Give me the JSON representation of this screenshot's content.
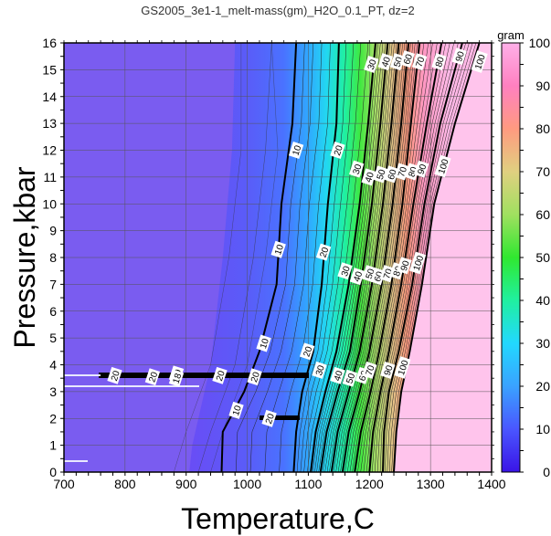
{
  "chart_data": {
    "type": "heatmap",
    "title": "GS2005_3e1-1_melt-mass(gm)_H2O_0.1_PT, dz=2",
    "xlabel": "Temperature,C",
    "ylabel": "Pressure,kbar",
    "xlim": [
      700,
      1400
    ],
    "ylim": [
      0,
      16
    ],
    "xticks": [
      700,
      800,
      900,
      1000,
      1100,
      1200,
      1300,
      1400
    ],
    "yticks": [
      0,
      1,
      2,
      3,
      4,
      5,
      6,
      7,
      8,
      9,
      10,
      11,
      12,
      13,
      14,
      15,
      16
    ],
    "grid": true,
    "colorbar": {
      "label": "gram",
      "range": [
        0,
        100
      ],
      "ticks": [
        0,
        10,
        20,
        30,
        40,
        50,
        60,
        70,
        80,
        90,
        100
      ],
      "colors": [
        "#3a14e6",
        "#4a56ff",
        "#3aa2ff",
        "#22d8ff",
        "#20f0a0",
        "#30e830",
        "#a0e060",
        "#e0d080",
        "#ff9a80",
        "#ff80c0",
        "#ffb0e8"
      ]
    },
    "contour_interval": 2,
    "major_contours": [
      10,
      20,
      30,
      40,
      50,
      60,
      70,
      80,
      90,
      100
    ],
    "contour_label_values": [
      10,
      20,
      30,
      40,
      50,
      60,
      70,
      80,
      90,
      100
    ],
    "isolines": [
      {
        "value": 10,
        "points": [
          [
            1080,
            16
          ],
          [
            1074,
            13
          ],
          [
            1056,
            10
          ],
          [
            1048,
            7
          ],
          [
            1020,
            4.5
          ],
          [
            995,
            3.0
          ],
          [
            960,
            1.5
          ],
          [
            958,
            0
          ]
        ]
      },
      {
        "value": 20,
        "points": [
          [
            1150,
            16
          ],
          [
            1146,
            13
          ],
          [
            1132,
            10
          ],
          [
            1122,
            7
          ],
          [
            1108,
            4.5
          ],
          [
            1090,
            3.0
          ],
          [
            1080,
            1.5
          ],
          [
            1076,
            0
          ]
        ]
      },
      {
        "value": 30,
        "points": [
          [
            1210,
            16
          ],
          [
            1198,
            13
          ],
          [
            1184,
            10
          ],
          [
            1166,
            7
          ],
          [
            1146,
            4.5
          ],
          [
            1128,
            3.0
          ],
          [
            1112,
            1.5
          ],
          [
            1104,
            0
          ]
        ]
      },
      {
        "value": 40,
        "points": [
          [
            1230,
            16
          ],
          [
            1218,
            13
          ],
          [
            1204,
            10
          ],
          [
            1186,
            7
          ],
          [
            1168,
            4.5
          ],
          [
            1148,
            3.0
          ],
          [
            1130,
            1.5
          ],
          [
            1120,
            0
          ]
        ]
      },
      {
        "value": 50,
        "points": [
          [
            1248,
            16
          ],
          [
            1236,
            13
          ],
          [
            1222,
            10
          ],
          [
            1204,
            7
          ],
          [
            1184,
            4.5
          ],
          [
            1166,
            3.0
          ],
          [
            1148,
            1.5
          ],
          [
            1138,
            0
          ]
        ]
      },
      {
        "value": 60,
        "points": [
          [
            1264,
            16
          ],
          [
            1252,
            13
          ],
          [
            1238,
            10
          ],
          [
            1220,
            7
          ],
          [
            1200,
            4.5
          ],
          [
            1184,
            3.0
          ],
          [
            1166,
            1.5
          ],
          [
            1156,
            0
          ]
        ]
      },
      {
        "value": 70,
        "points": [
          [
            1282,
            16
          ],
          [
            1268,
            13
          ],
          [
            1254,
            10
          ],
          [
            1236,
            7
          ],
          [
            1216,
            4.5
          ],
          [
            1202,
            3.0
          ],
          [
            1186,
            1.5
          ],
          [
            1176,
            0
          ]
        ]
      },
      {
        "value": 80,
        "points": [
          [
            1318,
            16
          ],
          [
            1294,
            13
          ],
          [
            1272,
            10
          ],
          [
            1252,
            7
          ],
          [
            1232,
            4.5
          ],
          [
            1218,
            3.0
          ],
          [
            1206,
            1.5
          ],
          [
            1200,
            0
          ]
        ]
      },
      {
        "value": 90,
        "points": [
          [
            1352,
            16
          ],
          [
            1316,
            13
          ],
          [
            1290,
            10
          ],
          [
            1270,
            7
          ],
          [
            1248,
            4.5
          ],
          [
            1232,
            3.0
          ],
          [
            1224,
            1.5
          ],
          [
            1222,
            0
          ]
        ]
      },
      {
        "value": 100,
        "points": [
          [
            1380,
            16
          ],
          [
            1340,
            13
          ],
          [
            1306,
            10
          ],
          [
            1286,
            7
          ],
          [
            1266,
            4.5
          ],
          [
            1252,
            3.0
          ],
          [
            1244,
            1.5
          ],
          [
            1240,
            0
          ]
        ]
      }
    ],
    "labeled_points": [
      {
        "text": "10",
        "x": 1080,
        "y": 12.0
      },
      {
        "text": "10",
        "x": 1051,
        "y": 8.3
      },
      {
        "text": "10",
        "x": 1027,
        "y": 4.8
      },
      {
        "text": "10",
        "x": 982,
        "y": 2.3
      },
      {
        "text": "20",
        "x": 1148,
        "y": 12.0
      },
      {
        "text": "20",
        "x": 1125,
        "y": 8.2
      },
      {
        "text": "20",
        "x": 1098,
        "y": 4.5
      },
      {
        "text": "20",
        "x": 1036,
        "y": 2.0
      },
      {
        "text": "20",
        "x": 783,
        "y": 3.6
      },
      {
        "text": "20",
        "x": 845,
        "y": 3.55
      },
      {
        "text": "20",
        "x": 955,
        "y": 3.6
      },
      {
        "text": "20",
        "x": 1012,
        "y": 3.55
      },
      {
        "text": "19",
        "x": 884,
        "y": 3.65
      },
      {
        "text": "18",
        "x": 884,
        "y": 3.5
      },
      {
        "text": "30",
        "x": 1203,
        "y": 15.2
      },
      {
        "text": "30",
        "x": 1179,
        "y": 11.3
      },
      {
        "text": "30",
        "x": 1160,
        "y": 7.5
      },
      {
        "text": "30",
        "x": 1118,
        "y": 3.8
      },
      {
        "text": "40",
        "x": 1226,
        "y": 15.3
      },
      {
        "text": "40",
        "x": 1199,
        "y": 11.0
      },
      {
        "text": "40",
        "x": 1180,
        "y": 7.3
      },
      {
        "text": "40",
        "x": 1148,
        "y": 3.6
      },
      {
        "text": "50",
        "x": 1246,
        "y": 15.3
      },
      {
        "text": "50",
        "x": 1218,
        "y": 11.1
      },
      {
        "text": "50",
        "x": 1200,
        "y": 7.4
      },
      {
        "text": "50",
        "x": 1168,
        "y": 3.5
      },
      {
        "text": "60",
        "x": 1262,
        "y": 15.4
      },
      {
        "text": "60",
        "x": 1236,
        "y": 11.1
      },
      {
        "text": "60",
        "x": 1214,
        "y": 7.3
      },
      {
        "text": "60",
        "x": 1189,
        "y": 3.6
      },
      {
        "text": "70",
        "x": 1282,
        "y": 15.3
      },
      {
        "text": "70",
        "x": 1253,
        "y": 11.2
      },
      {
        "text": "70",
        "x": 1229,
        "y": 7.4
      },
      {
        "text": "70",
        "x": 1200,
        "y": 3.8
      },
      {
        "text": "80",
        "x": 1314,
        "y": 15.3
      },
      {
        "text": "80",
        "x": 1270,
        "y": 11.2
      },
      {
        "text": "80",
        "x": 1245,
        "y": 7.5
      },
      {
        "text": "90",
        "x": 1347,
        "y": 15.5
      },
      {
        "text": "90",
        "x": 1285,
        "y": 11.3
      },
      {
        "text": "90",
        "x": 1257,
        "y": 7.7
      },
      {
        "text": "90",
        "x": 1230,
        "y": 3.8
      },
      {
        "text": "100",
        "x": 1380,
        "y": 15.3
      },
      {
        "text": "100",
        "x": 1320,
        "y": 11.4
      },
      {
        "text": "100",
        "x": 1279,
        "y": 7.8
      },
      {
        "text": "100",
        "x": 1254,
        "y": 3.9
      }
    ]
  }
}
